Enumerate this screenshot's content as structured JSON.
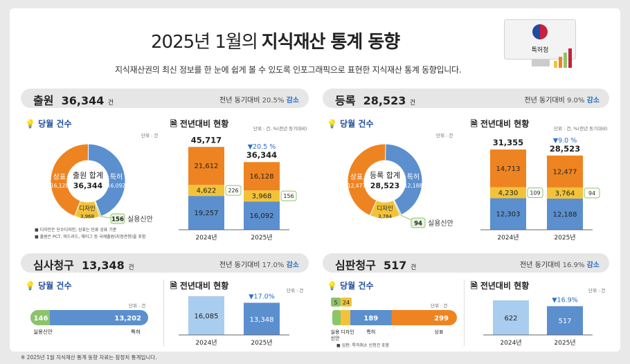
{
  "header": {
    "title_light": "2025년 1월의",
    "title_bold": "지식재산 통계 동향",
    "subtitle": "지식재산권의 최신 정보를 한 눈에 쉽게 볼 수 있도록 인포그래픽으로 표현한 지식재산 통계 동향입니다.",
    "logo_text": "특허청"
  },
  "colors": {
    "blue": "#5b8fce",
    "orange": "#ee8421",
    "yellow": "#f2c33a",
    "green": "#8cc46a",
    "light_blue": "#a9cdef",
    "header_gray": "#e6e6e6"
  },
  "labels": {
    "monthly": "당월 건수",
    "yoy": "전년대비 현황",
    "unit": "단위 : 건",
    "unit_pct": "단위 : 건, %(전년 동기대비)",
    "yoy_prefix": "전년 동기대비"
  },
  "chart_data": [
    {
      "id": "application",
      "title": "출원",
      "total": "36,344",
      "total_unit": "건",
      "yoy_pct": "20.5%",
      "direction": "감소",
      "donut": {
        "type": "pie",
        "center_label": "출원 합계",
        "center_value": "36,344",
        "slices": [
          {
            "name": "특허",
            "value": 16092,
            "label": "16,092"
          },
          {
            "name": "실용신안",
            "value": 156,
            "label": "156"
          },
          {
            "name": "디자인",
            "value": 3968,
            "label": "3,968"
          },
          {
            "name": "상표",
            "value": 16128,
            "label": "16,128"
          }
        ]
      },
      "notes": [
        "디자인은 단수디자인, 상표는 단류 상표 기준",
        "출원은 PCT, 마드리드, 헤이그 등 국제출원(지정관청)을 포함"
      ],
      "bars": {
        "type": "bar",
        "categories": [
          "2024년",
          "2025년"
        ],
        "totals": [
          "45,717",
          "36,344"
        ],
        "change": "▼20.5 %",
        "series": [
          {
            "name": "특허",
            "values": [
              19257,
              16092
            ],
            "labels": [
              "19,257",
              "16,092"
            ]
          },
          {
            "name": "디자인",
            "values": [
              4622,
              3968
            ],
            "labels": [
              "4,622",
              "3,968"
            ]
          },
          {
            "name": "상표",
            "values": [
              21612,
              16128
            ],
            "labels": [
              "21,612",
              "16,128"
            ]
          },
          {
            "name": "실용신안",
            "values": [
              226,
              156
            ],
            "labels": [
              "226",
              "156"
            ]
          }
        ]
      }
    },
    {
      "id": "registration",
      "title": "등록",
      "total": "28,523",
      "total_unit": "건",
      "yoy_pct": "9.0%",
      "direction": "감소",
      "donut": {
        "type": "pie",
        "center_label": "등록 합계",
        "center_value": "28,523",
        "slices": [
          {
            "name": "특허",
            "value": 12188,
            "label": "12,188"
          },
          {
            "name": "실용신안",
            "value": 94,
            "label": "94"
          },
          {
            "name": "디자인",
            "value": 3764,
            "label": "3,764"
          },
          {
            "name": "상표",
            "value": 12477,
            "label": "12,477"
          }
        ]
      },
      "bars": {
        "type": "bar",
        "categories": [
          "2024년",
          "2025년"
        ],
        "totals": [
          "31,355",
          "28,523"
        ],
        "change": "▼9.0 %",
        "series": [
          {
            "name": "특허",
            "values": [
              12303,
              12188
            ],
            "labels": [
              "12,303",
              "12,188"
            ]
          },
          {
            "name": "디자인",
            "values": [
              4230,
              3764
            ],
            "labels": [
              "4,230",
              "3,764"
            ]
          },
          {
            "name": "상표",
            "values": [
              14713,
              12477
            ],
            "labels": [
              "14,713",
              "12,477"
            ]
          },
          {
            "name": "실용신안",
            "values": [
              109,
              94
            ],
            "labels": [
              "109",
              "94"
            ]
          }
        ]
      }
    },
    {
      "id": "examination",
      "title": "심사청구",
      "total": "13,348",
      "total_unit": "건",
      "yoy_pct": "17.0%",
      "direction": "감소",
      "hbar": {
        "type": "bar",
        "segments": [
          {
            "name": "실용신안",
            "value": 146,
            "label": "146"
          },
          {
            "name": "특허",
            "value": 13202,
            "label": "13,202"
          }
        ]
      },
      "bars": {
        "type": "bar",
        "categories": [
          "2024년",
          "2025년"
        ],
        "values": [
          16085,
          13348
        ],
        "labels": [
          "16,085",
          "13,348"
        ],
        "change": "▼17.0%"
      }
    },
    {
      "id": "trial",
      "title": "심판청구",
      "total": "517",
      "total_unit": "건",
      "yoy_pct": "16.9%",
      "direction": "감소",
      "hbar": {
        "type": "bar",
        "segments": [
          {
            "name": "실용신안",
            "value": 5,
            "label": "5"
          },
          {
            "name": "디자인",
            "value": 24,
            "label": "24"
          },
          {
            "name": "특허",
            "value": 189,
            "label": "189"
          },
          {
            "name": "상표",
            "value": 299,
            "label": "299"
          }
        ],
        "note": "심판: 특허취소 신청건 포함"
      },
      "bars": {
        "type": "bar",
        "categories": [
          "2024년",
          "2025년"
        ],
        "values": [
          622,
          517
        ],
        "labels": [
          "622",
          "517"
        ],
        "change": "▼16.9%"
      }
    }
  ],
  "footer": "※ 2025년 1월 지식재산 통계 동향 자료는 잠정치 통계입니다."
}
